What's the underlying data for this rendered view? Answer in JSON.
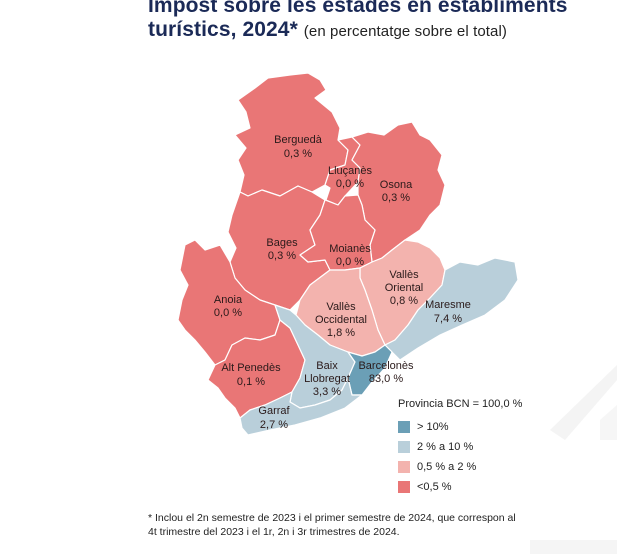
{
  "title": {
    "main_line1": "Impost sobre les estades en establiments",
    "main_line2": "turístics, 2024*",
    "subtitle": "(en percentatge sobre el total)"
  },
  "colors": {
    "over_10": "#6b9fb6",
    "from_2_to_10": "#b9cfda",
    "from_05_to_2": "#f3b3ae",
    "under_05": "#e97676",
    "title": "#1b2a57"
  },
  "regions": [
    {
      "name": "Berguedà",
      "value": "0,3 %",
      "class": "under_05"
    },
    {
      "name": "Lluçanès",
      "value": "0,0 %",
      "class": "under_05"
    },
    {
      "name": "Osona",
      "value": "0,3 %",
      "class": "under_05"
    },
    {
      "name": "Bages",
      "value": "0,3 %",
      "class": "under_05"
    },
    {
      "name": "Moianès",
      "value": "0,0 %",
      "class": "under_05"
    },
    {
      "name": "Vallès",
      "name2": "Oriental",
      "value": "0,8 %",
      "class": "from_05_to_2"
    },
    {
      "name": "Anoia",
      "value": "0,0 %",
      "class": "under_05"
    },
    {
      "name": "Vallès",
      "name2": "Occidental",
      "value": "1,8 %",
      "class": "from_05_to_2"
    },
    {
      "name": "Maresme",
      "value": "7,4 %",
      "class": "from_2_to_10"
    },
    {
      "name": "Alt Penedès",
      "value": "0,1 %",
      "class": "under_05"
    },
    {
      "name": "Baix",
      "name2": "Llobregat",
      "value": "3,3 %",
      "class": "from_2_to_10"
    },
    {
      "name": "Barcelonès",
      "value": "83,0 %",
      "class": "over_10"
    },
    {
      "name": "Garraf",
      "value": "2,7 %",
      "class": "from_2_to_10"
    }
  ],
  "legend": {
    "heading": "Provincia BCN = 100,0 %",
    "items": [
      {
        "label": "> 10%"
      },
      {
        "label": "2 % a 10 %"
      },
      {
        "label": "0,5 % a 2 %"
      },
      {
        "label": "<0,5 %"
      }
    ]
  },
  "footnote": {
    "line1": "*  Inclou el 2n semestre de 2023 i el primer semestre de 2024, que correspon al",
    "line2": "4t trimestre del 2023 i el 1r, 2n i 3r trimestres de 2024."
  }
}
